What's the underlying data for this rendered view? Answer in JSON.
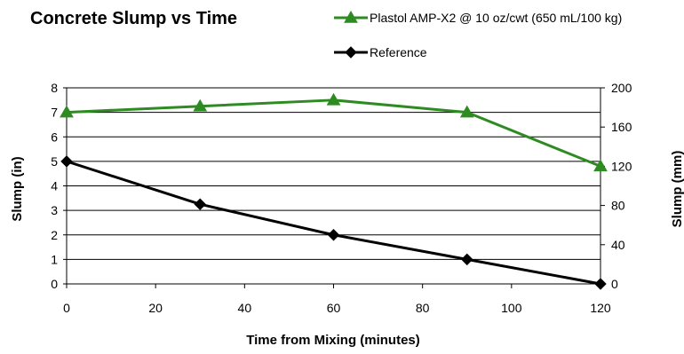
{
  "chart_data": {
    "type": "line",
    "title": "Concrete Slump vs Time",
    "xlabel": "Time from Mixing (minutes)",
    "ylabel": "Slump (in)",
    "y2label": "Slump (mm)",
    "xlim": [
      0,
      120
    ],
    "ylim": [
      0,
      8
    ],
    "y2lim": [
      0,
      200
    ],
    "x_ticks": [
      0,
      20,
      40,
      60,
      80,
      100,
      120
    ],
    "y_ticks": [
      0,
      1,
      2,
      3,
      4,
      5,
      6,
      7,
      8
    ],
    "y2_ticks": [
      0,
      40,
      80,
      120,
      160,
      200
    ],
    "grid": "horizontal",
    "legend_position": "top-right",
    "x": [
      0,
      30,
      60,
      90,
      120
    ],
    "series": [
      {
        "name": "Plastol AMP-X2 @ 10 oz/cwt (650 mL/100 kg)",
        "marker": "triangle",
        "color": "#2e8b22",
        "values": [
          7.0,
          7.25,
          7.5,
          7.0,
          4.8
        ]
      },
      {
        "name": "Reference",
        "marker": "diamond",
        "color": "#000000",
        "values": [
          5.0,
          3.25,
          2.0,
          1.0,
          0.0
        ]
      }
    ]
  }
}
